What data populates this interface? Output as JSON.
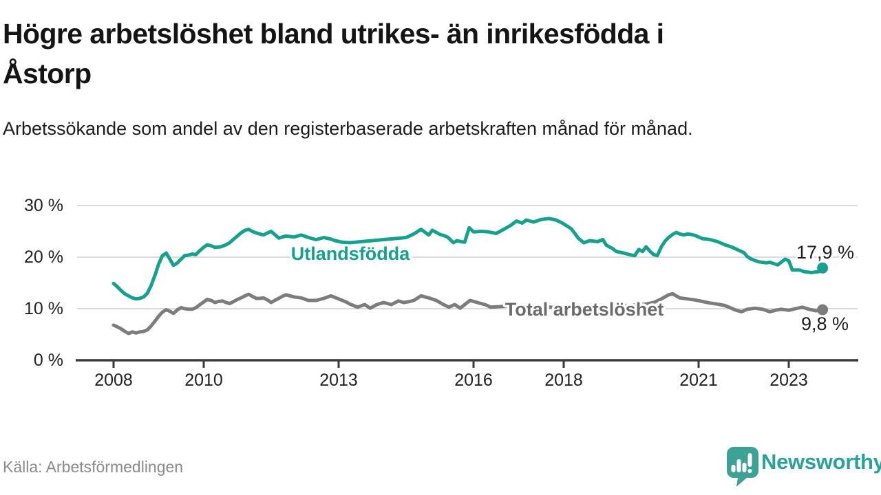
{
  "header": {
    "title_lines": [
      "Högre arbetslöshet bland utrikes- än inrikesfödda i",
      "Åstorp"
    ],
    "subtitle": "Arbetssökande som andel av den registerbaserade arbetskraften månad för månad."
  },
  "footer": {
    "source": "Källa: Arbetsförmedlingen",
    "brand": "Newsworthy",
    "brand_color": "#2aa19b",
    "logo_icon": "speech-bubble-bar-chart-exclamation"
  },
  "chart_data": {
    "type": "line",
    "title": "Högre arbetslöshet bland utrikes- än inrikesfödda i Åstorp",
    "subtitle": "Arbetssökande som andel av den registerbaserade arbetskraften månad för månad.",
    "xlabel": "",
    "ylabel": "",
    "unit": "%",
    "grid": "horizontal",
    "legend": "inline-labels",
    "x_domain": [
      2007.15,
      2024.55
    ],
    "ylim": [
      0,
      30
    ],
    "yticks": [
      {
        "v": 30,
        "label": "30 %"
      },
      {
        "v": 20,
        "label": "20 %"
      },
      {
        "v": 10,
        "label": "10 %"
      },
      {
        "v": 0,
        "label": "0 %"
      }
    ],
    "xticks": [
      {
        "v": 2008,
        "label": "2008"
      },
      {
        "v": 2010,
        "label": "2010"
      },
      {
        "v": 2013,
        "label": "2013"
      },
      {
        "v": 2016,
        "label": "2016"
      },
      {
        "v": 2018,
        "label": "2018"
      },
      {
        "v": 2021,
        "label": "2021"
      },
      {
        "v": 2023,
        "label": "2023"
      }
    ],
    "series": [
      {
        "name": "Utlandsfödda",
        "color": "#16a08e",
        "label_color": "#16a08e",
        "end_label": "17,9 %",
        "end_value": 17.9,
        "points": [
          [
            2008.0,
            14.9
          ],
          [
            2008.08,
            14.3
          ],
          [
            2008.17,
            13.5
          ],
          [
            2008.25,
            12.9
          ],
          [
            2008.33,
            12.5
          ],
          [
            2008.42,
            12.1
          ],
          [
            2008.5,
            11.9
          ],
          [
            2008.58,
            12.0
          ],
          [
            2008.67,
            12.3
          ],
          [
            2008.75,
            13.0
          ],
          [
            2008.83,
            14.4
          ],
          [
            2008.92,
            16.5
          ],
          [
            2009.0,
            18.6
          ],
          [
            2009.08,
            20.2
          ],
          [
            2009.17,
            20.8
          ],
          [
            2009.25,
            19.6
          ],
          [
            2009.33,
            18.4
          ],
          [
            2009.42,
            18.9
          ],
          [
            2009.5,
            19.6
          ],
          [
            2009.58,
            20.3
          ],
          [
            2009.67,
            20.4
          ],
          [
            2009.75,
            20.6
          ],
          [
            2009.83,
            20.5
          ],
          [
            2009.92,
            21.3
          ],
          [
            2010.0,
            21.9
          ],
          [
            2010.08,
            22.4
          ],
          [
            2010.17,
            22.2
          ],
          [
            2010.25,
            21.9
          ],
          [
            2010.38,
            22.0
          ],
          [
            2010.5,
            22.4
          ],
          [
            2010.58,
            22.8
          ],
          [
            2010.67,
            23.5
          ],
          [
            2010.75,
            24.1
          ],
          [
            2010.83,
            24.7
          ],
          [
            2010.92,
            25.2
          ],
          [
            2011.0,
            25.4
          ],
          [
            2011.08,
            25.0
          ],
          [
            2011.17,
            24.7
          ],
          [
            2011.25,
            24.5
          ],
          [
            2011.33,
            24.3
          ],
          [
            2011.42,
            24.7
          ],
          [
            2011.5,
            25.0
          ],
          [
            2011.58,
            24.4
          ],
          [
            2011.67,
            23.7
          ],
          [
            2011.75,
            23.9
          ],
          [
            2011.83,
            24.1
          ],
          [
            2011.92,
            24.0
          ],
          [
            2012.0,
            23.9
          ],
          [
            2012.17,
            24.3
          ],
          [
            2012.33,
            23.8
          ],
          [
            2012.5,
            23.4
          ],
          [
            2012.67,
            23.8
          ],
          [
            2012.83,
            23.5
          ],
          [
            2012.92,
            23.2
          ],
          [
            2013.08,
            22.9
          ],
          [
            2013.25,
            22.8
          ],
          [
            2013.5,
            23.0
          ],
          [
            2013.75,
            23.2
          ],
          [
            2014.0,
            23.4
          ],
          [
            2014.25,
            23.6
          ],
          [
            2014.5,
            23.8
          ],
          [
            2014.67,
            24.5
          ],
          [
            2014.83,
            25.4
          ],
          [
            2015.0,
            24.3
          ],
          [
            2015.08,
            25.2
          ],
          [
            2015.17,
            24.8
          ],
          [
            2015.25,
            24.4
          ],
          [
            2015.33,
            24.2
          ],
          [
            2015.42,
            23.9
          ],
          [
            2015.55,
            22.8
          ],
          [
            2015.63,
            23.2
          ],
          [
            2015.72,
            23.0
          ],
          [
            2015.8,
            22.9
          ],
          [
            2015.9,
            25.7
          ],
          [
            2016.0,
            24.9
          ],
          [
            2016.17,
            25.0
          ],
          [
            2016.33,
            24.9
          ],
          [
            2016.5,
            24.6
          ],
          [
            2016.67,
            25.4
          ],
          [
            2016.83,
            26.2
          ],
          [
            2016.95,
            27.0
          ],
          [
            2017.08,
            26.6
          ],
          [
            2017.17,
            27.2
          ],
          [
            2017.33,
            26.8
          ],
          [
            2017.5,
            27.3
          ],
          [
            2017.67,
            27.5
          ],
          [
            2017.83,
            27.2
          ],
          [
            2017.95,
            26.7
          ],
          [
            2018.08,
            26.0
          ],
          [
            2018.17,
            25.5
          ],
          [
            2018.33,
            23.6
          ],
          [
            2018.45,
            22.8
          ],
          [
            2018.58,
            23.2
          ],
          [
            2018.75,
            23.0
          ],
          [
            2018.87,
            23.4
          ],
          [
            2018.95,
            22.3
          ],
          [
            2019.08,
            21.7
          ],
          [
            2019.17,
            21.1
          ],
          [
            2019.33,
            20.8
          ],
          [
            2019.5,
            20.4
          ],
          [
            2019.58,
            20.3
          ],
          [
            2019.67,
            21.5
          ],
          [
            2019.75,
            21.1
          ],
          [
            2019.83,
            22.0
          ],
          [
            2019.92,
            21.1
          ],
          [
            2020.0,
            20.5
          ],
          [
            2020.08,
            20.3
          ],
          [
            2020.17,
            22.0
          ],
          [
            2020.25,
            23.1
          ],
          [
            2020.33,
            23.8
          ],
          [
            2020.42,
            24.4
          ],
          [
            2020.5,
            24.8
          ],
          [
            2020.58,
            24.5
          ],
          [
            2020.67,
            24.3
          ],
          [
            2020.75,
            24.5
          ],
          [
            2020.83,
            24.4
          ],
          [
            2020.92,
            24.2
          ],
          [
            2021.0,
            23.9
          ],
          [
            2021.08,
            23.6
          ],
          [
            2021.25,
            23.4
          ],
          [
            2021.42,
            23.0
          ],
          [
            2021.58,
            22.4
          ],
          [
            2021.75,
            21.9
          ],
          [
            2021.92,
            21.2
          ],
          [
            2022.0,
            20.9
          ],
          [
            2022.08,
            20.1
          ],
          [
            2022.17,
            19.6
          ],
          [
            2022.33,
            19.1
          ],
          [
            2022.5,
            18.9
          ],
          [
            2022.58,
            19.0
          ],
          [
            2022.75,
            18.5
          ],
          [
            2022.83,
            19.0
          ],
          [
            2022.92,
            19.6
          ],
          [
            2023.0,
            19.3
          ],
          [
            2023.08,
            17.5
          ],
          [
            2023.25,
            17.5
          ],
          [
            2023.33,
            17.2
          ],
          [
            2023.5,
            17.0
          ],
          [
            2023.58,
            17.1
          ],
          [
            2023.67,
            17.2
          ],
          [
            2023.75,
            17.9
          ]
        ]
      },
      {
        "name": "Total arbetslöshet",
        "color": "#7b7c7e",
        "label_color": "#6a6b6d",
        "end_label": "9,8 %",
        "end_value": 9.8,
        "points": [
          [
            2008.0,
            6.8
          ],
          [
            2008.08,
            6.5
          ],
          [
            2008.17,
            6.1
          ],
          [
            2008.25,
            5.6
          ],
          [
            2008.33,
            5.2
          ],
          [
            2008.42,
            5.5
          ],
          [
            2008.5,
            5.3
          ],
          [
            2008.58,
            5.5
          ],
          [
            2008.67,
            5.6
          ],
          [
            2008.75,
            5.9
          ],
          [
            2008.83,
            6.6
          ],
          [
            2008.92,
            7.6
          ],
          [
            2009.0,
            8.5
          ],
          [
            2009.08,
            9.3
          ],
          [
            2009.17,
            9.8
          ],
          [
            2009.25,
            9.5
          ],
          [
            2009.33,
            9.1
          ],
          [
            2009.42,
            9.8
          ],
          [
            2009.5,
            10.2
          ],
          [
            2009.58,
            10.0
          ],
          [
            2009.67,
            9.9
          ],
          [
            2009.75,
            9.9
          ],
          [
            2009.83,
            10.2
          ],
          [
            2009.92,
            10.8
          ],
          [
            2010.0,
            11.3
          ],
          [
            2010.08,
            11.8
          ],
          [
            2010.17,
            11.6
          ],
          [
            2010.25,
            11.2
          ],
          [
            2010.33,
            11.4
          ],
          [
            2010.42,
            11.5
          ],
          [
            2010.5,
            11.2
          ],
          [
            2010.58,
            11.0
          ],
          [
            2010.67,
            11.4
          ],
          [
            2010.75,
            11.8
          ],
          [
            2010.83,
            12.1
          ],
          [
            2010.92,
            12.5
          ],
          [
            2011.0,
            12.8
          ],
          [
            2011.08,
            12.4
          ],
          [
            2011.17,
            12.0
          ],
          [
            2011.25,
            12.0
          ],
          [
            2011.33,
            12.1
          ],
          [
            2011.42,
            11.7
          ],
          [
            2011.5,
            11.2
          ],
          [
            2011.58,
            11.6
          ],
          [
            2011.67,
            12.0
          ],
          [
            2011.75,
            12.4
          ],
          [
            2011.83,
            12.7
          ],
          [
            2011.92,
            12.5
          ],
          [
            2012.0,
            12.3
          ],
          [
            2012.17,
            12.1
          ],
          [
            2012.33,
            11.6
          ],
          [
            2012.5,
            11.6
          ],
          [
            2012.67,
            12.0
          ],
          [
            2012.83,
            12.5
          ],
          [
            2013.0,
            11.9
          ],
          [
            2013.17,
            11.3
          ],
          [
            2013.25,
            10.9
          ],
          [
            2013.42,
            10.3
          ],
          [
            2013.58,
            10.8
          ],
          [
            2013.7,
            10.1
          ],
          [
            2013.85,
            10.8
          ],
          [
            2014.0,
            11.2
          ],
          [
            2014.17,
            10.8
          ],
          [
            2014.33,
            11.5
          ],
          [
            2014.45,
            11.2
          ],
          [
            2014.58,
            11.4
          ],
          [
            2014.67,
            11.6
          ],
          [
            2014.83,
            12.5
          ],
          [
            2015.0,
            12.1
          ],
          [
            2015.17,
            11.6
          ],
          [
            2015.33,
            10.8
          ],
          [
            2015.45,
            10.3
          ],
          [
            2015.58,
            10.8
          ],
          [
            2015.7,
            10.1
          ],
          [
            2015.83,
            11.0
          ],
          [
            2015.92,
            11.6
          ],
          [
            2016.08,
            11.2
          ],
          [
            2016.25,
            10.8
          ],
          [
            2016.38,
            10.3
          ],
          [
            2016.58,
            10.4
          ],
          [
            2016.83,
            10.6
          ],
          [
            2017.08,
            10.5
          ],
          [
            2017.33,
            10.3
          ],
          [
            2017.58,
            10.4
          ],
          [
            2017.83,
            10.2
          ],
          [
            2018.08,
            10.4
          ],
          [
            2018.33,
            10.3
          ],
          [
            2018.58,
            10.5
          ],
          [
            2018.83,
            10.4
          ],
          [
            2019.08,
            10.3
          ],
          [
            2019.33,
            10.5
          ],
          [
            2019.58,
            10.7
          ],
          [
            2019.83,
            10.9
          ],
          [
            2020.0,
            11.2
          ],
          [
            2020.17,
            11.9
          ],
          [
            2020.33,
            12.7
          ],
          [
            2020.42,
            12.9
          ],
          [
            2020.58,
            12.1
          ],
          [
            2020.75,
            11.9
          ],
          [
            2020.92,
            11.7
          ],
          [
            2021.08,
            11.4
          ],
          [
            2021.25,
            11.1
          ],
          [
            2021.42,
            10.9
          ],
          [
            2021.58,
            10.6
          ],
          [
            2021.67,
            10.3
          ],
          [
            2021.83,
            9.7
          ],
          [
            2021.95,
            9.4
          ],
          [
            2022.08,
            9.9
          ],
          [
            2022.25,
            10.1
          ],
          [
            2022.42,
            9.9
          ],
          [
            2022.58,
            9.4
          ],
          [
            2022.7,
            9.7
          ],
          [
            2022.83,
            9.9
          ],
          [
            2023.0,
            9.7
          ],
          [
            2023.15,
            10.0
          ],
          [
            2023.3,
            10.3
          ],
          [
            2023.45,
            9.9
          ],
          [
            2023.6,
            9.6
          ],
          [
            2023.75,
            9.8
          ]
        ]
      }
    ]
  }
}
